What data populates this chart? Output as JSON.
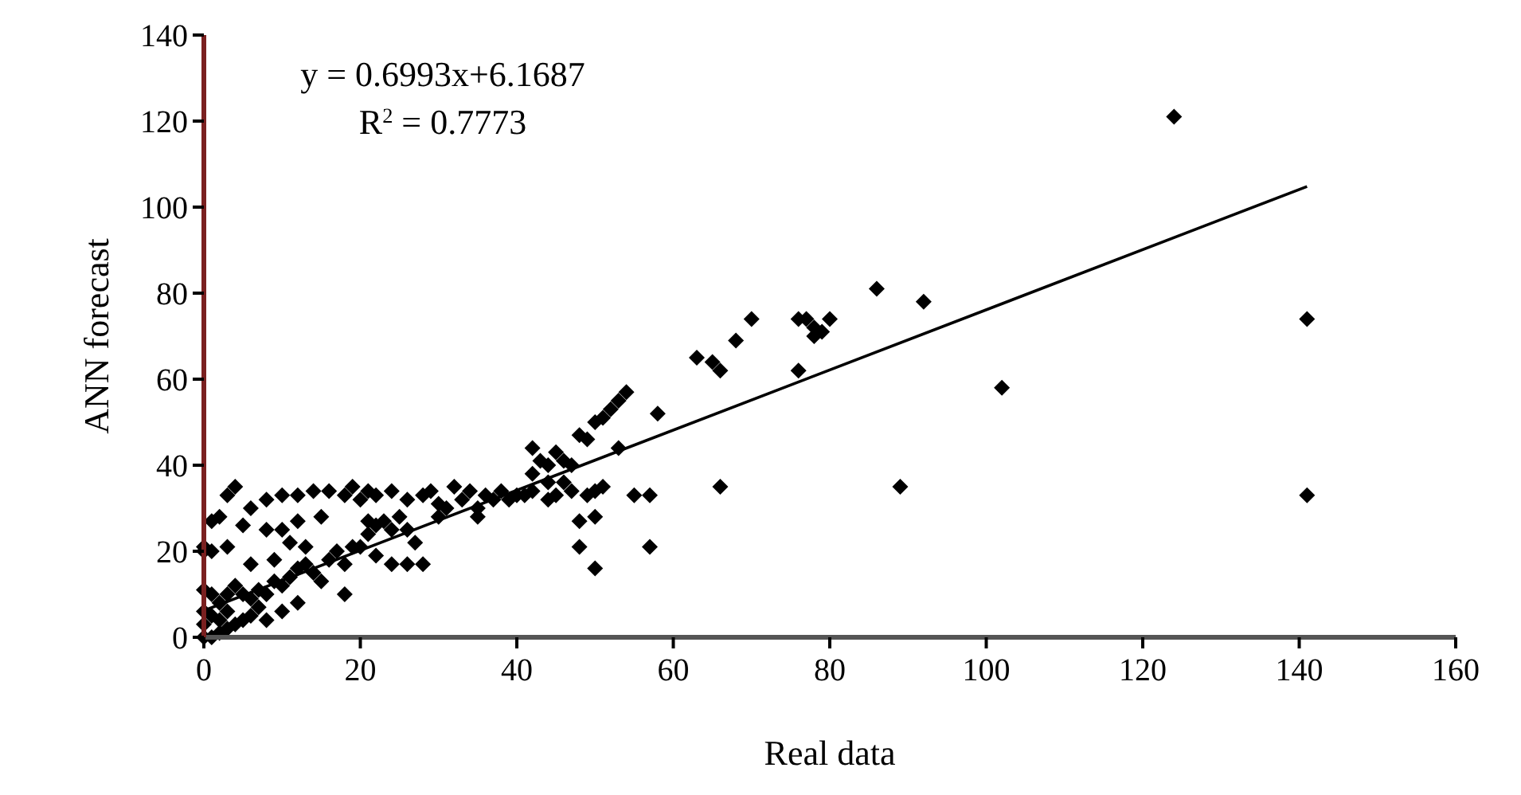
{
  "chart_data": {
    "type": "scatter",
    "xlabel": "Real data",
    "ylabel": "ANN forecast",
    "xlim": [
      0,
      160
    ],
    "ylim": [
      0,
      140
    ],
    "xticks": [
      0,
      20,
      40,
      60,
      80,
      100,
      120,
      140,
      160
    ],
    "yticks": [
      0,
      20,
      40,
      60,
      80,
      100,
      120,
      140
    ],
    "grid": false,
    "marker": "diamond",
    "annotations": [
      "y = 0.6993x+6.1687",
      "R$^{2}$ = 0.7773"
    ],
    "series": [
      {
        "type": "scatter",
        "color": "#000000",
        "x": [
          124,
          141,
          141,
          102,
          89,
          92,
          86,
          80,
          79,
          78,
          77,
          76,
          76,
          78,
          70,
          68,
          66,
          65,
          63,
          66,
          57,
          57,
          55,
          58,
          54,
          53,
          52,
          53,
          51,
          50,
          49,
          48,
          50,
          50,
          48,
          48,
          49,
          50,
          51,
          42,
          43,
          44,
          45,
          46,
          47,
          42,
          44,
          45,
          46,
          47,
          44,
          40,
          41,
          42,
          3,
          4,
          6,
          8,
          10,
          12,
          14,
          16,
          18,
          19,
          20,
          21,
          22,
          24,
          26,
          28,
          29,
          30,
          32,
          34,
          36,
          38,
          39,
          35,
          33,
          0,
          0,
          1,
          2,
          1,
          3,
          0,
          1,
          2,
          3,
          4,
          5,
          6,
          7,
          8,
          9,
          10,
          11,
          12,
          13,
          14,
          15,
          16,
          17,
          18,
          19,
          20,
          21,
          22,
          23,
          24,
          25,
          26,
          27,
          28,
          26,
          24,
          22,
          21,
          15,
          12,
          10,
          8,
          5,
          11,
          9,
          7,
          6,
          5,
          4,
          3,
          2,
          1,
          0,
          0,
          0,
          1,
          2,
          3,
          10,
          12,
          8,
          6,
          18,
          13,
          30,
          31,
          35,
          37
        ],
        "values": [
          121,
          74,
          33,
          58,
          35,
          78,
          81,
          74,
          71,
          72,
          74,
          74,
          62,
          70,
          74,
          69,
          62,
          64,
          65,
          35,
          21,
          33,
          33,
          52,
          57,
          55,
          53,
          44,
          51,
          50,
          46,
          47,
          16,
          28,
          21,
          27,
          33,
          34,
          35,
          44,
          41,
          40,
          43,
          41,
          40,
          38,
          36,
          33,
          36,
          34,
          32,
          33,
          33,
          34,
          33,
          35,
          30,
          32,
          33,
          33,
          34,
          34,
          33,
          35,
          32,
          34,
          33,
          34,
          32,
          33,
          34,
          31,
          35,
          34,
          33,
          34,
          32,
          30,
          32,
          21,
          20,
          20,
          28,
          27,
          21,
          11,
          10,
          8,
          10,
          12,
          10,
          9,
          11,
          10,
          13,
          12,
          14,
          16,
          17,
          15,
          13,
          18,
          20,
          17,
          21,
          21,
          24,
          26,
          27,
          25,
          28,
          25,
          22,
          17,
          17,
          17,
          19,
          27,
          28,
          27,
          25,
          25,
          26,
          22,
          18,
          7,
          5,
          4,
          3,
          2,
          1,
          0,
          0,
          3,
          6,
          5,
          4,
          6,
          6,
          8,
          4,
          17,
          10,
          21,
          28,
          30,
          28,
          32
        ]
      },
      {
        "type": "line",
        "color": "#000000",
        "marker": "none",
        "x": [
          0,
          141
        ],
        "values": [
          6.2,
          104.8
        ]
      }
    ]
  }
}
